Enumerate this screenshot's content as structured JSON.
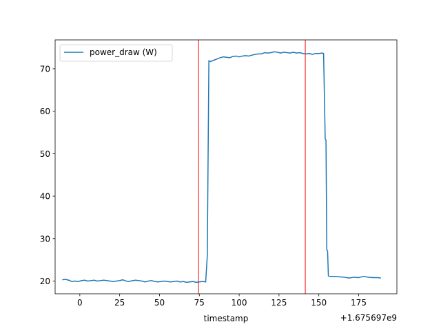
{
  "chart_data": {
    "type": "line",
    "xlabel": "timestamp",
    "ylabel": "",
    "x_offset_label": "+1.675697e9",
    "xlim": [
      -15.5,
      199
    ],
    "ylim": [
      17.0,
      76.8
    ],
    "xticks": [
      0,
      25,
      50,
      75,
      100,
      125,
      150,
      175
    ],
    "xtick_labels": [
      "0",
      "25",
      "50",
      "75",
      "100",
      "125",
      "150",
      "175"
    ],
    "yticks": [
      20,
      30,
      40,
      50,
      60,
      70
    ],
    "ytick_labels": [
      "20",
      "30",
      "40",
      "50",
      "60",
      "70"
    ],
    "grid": false,
    "legend_position": "top-left",
    "vertical_lines": [
      {
        "x": 74.5,
        "color": "#ff0000"
      },
      {
        "x": 141.5,
        "color": "#ff0000"
      }
    ],
    "series": [
      {
        "name": "power_draw (W)",
        "color": "#1f77b4",
        "x": [
          -11,
          -9,
          -7,
          -5,
          -3,
          -1,
          1,
          3,
          5,
          7,
          9,
          11,
          13,
          15,
          17,
          19,
          21,
          23,
          25,
          27,
          29,
          31,
          33,
          35,
          37,
          39,
          41,
          43,
          45,
          47,
          49,
          51,
          53,
          55,
          57,
          59,
          61,
          63,
          65,
          67,
          69,
          71,
          73,
          75,
          77,
          79,
          80,
          81,
          82,
          84,
          86,
          88,
          90,
          92,
          94,
          96,
          98,
          100,
          102,
          104,
          106,
          108,
          110,
          112,
          114,
          116,
          118,
          120,
          122,
          124,
          126,
          128,
          130,
          132,
          134,
          136,
          138,
          140,
          142,
          144,
          146,
          148,
          150,
          152,
          153,
          154,
          154.5,
          155,
          155.5,
          156,
          157,
          160,
          163,
          166,
          169,
          172,
          175,
          178,
          181,
          184,
          187,
          189
        ],
        "y": [
          20.3,
          20.4,
          20.2,
          19.9,
          20.0,
          19.9,
          20.1,
          20.2,
          20.0,
          20.1,
          20.2,
          20.0,
          20.1,
          20.2,
          20.1,
          20.0,
          19.9,
          20.0,
          20.1,
          20.3,
          20.0,
          19.9,
          20.1,
          20.2,
          20.1,
          20.0,
          19.8,
          20.0,
          20.1,
          19.9,
          19.8,
          19.9,
          20.0,
          19.9,
          19.8,
          19.9,
          20.0,
          19.8,
          19.9,
          19.7,
          19.8,
          19.9,
          19.7,
          19.8,
          19.9,
          19.8,
          26.0,
          71.9,
          71.7,
          72.0,
          72.3,
          72.6,
          72.8,
          72.7,
          72.6,
          72.9,
          73.0,
          72.8,
          73.0,
          73.1,
          73.0,
          73.2,
          73.4,
          73.5,
          73.5,
          73.8,
          73.7,
          73.8,
          74.0,
          73.9,
          73.7,
          73.9,
          73.8,
          73.7,
          73.9,
          73.7,
          73.8,
          73.6,
          73.5,
          73.6,
          73.4,
          73.6,
          73.6,
          73.7,
          73.6,
          53.5,
          53.2,
          27.4,
          27.1,
          21.2,
          21.1,
          21.1,
          21.0,
          20.9,
          20.7,
          20.9,
          20.8,
          21.1,
          20.9,
          20.8,
          20.8,
          20.7
        ]
      }
    ]
  }
}
